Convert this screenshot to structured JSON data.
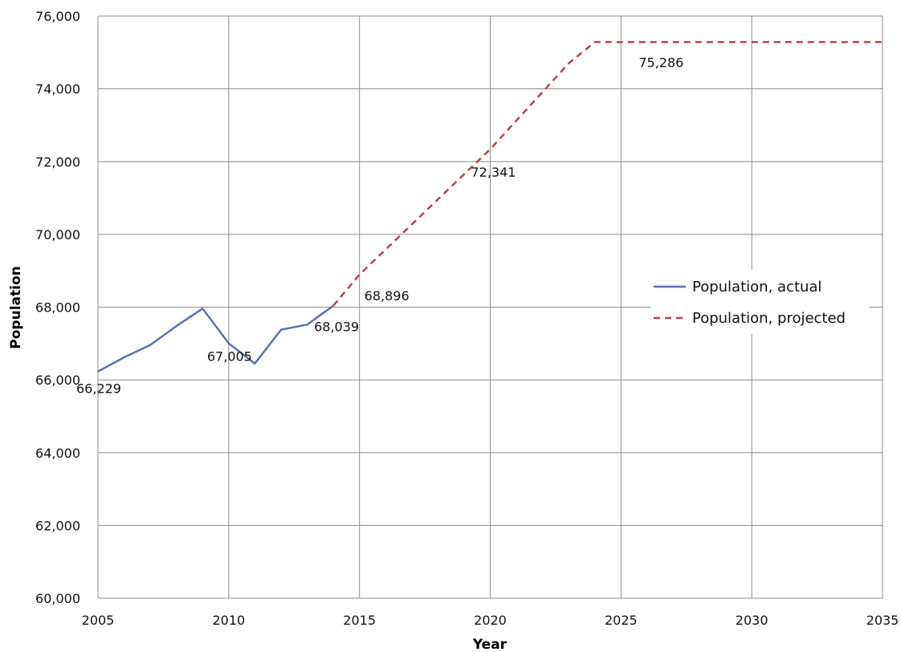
{
  "chart_data": {
    "type": "line",
    "title": "",
    "xlabel": "Year",
    "ylabel": "Population",
    "xlim": [
      2005,
      2035
    ],
    "ylim": [
      60000,
      76000
    ],
    "x_ticks": [
      2005,
      2010,
      2015,
      2020,
      2025,
      2030,
      2035
    ],
    "y_ticks": [
      60000,
      62000,
      64000,
      66000,
      68000,
      70000,
      72000,
      74000,
      76000
    ],
    "grid": true,
    "legend_position": "right",
    "series": [
      {
        "name": "Population, actual",
        "color": "#5b73a6",
        "style": "solid",
        "points": [
          [
            2005,
            66229
          ],
          [
            2006,
            66620
          ],
          [
            2007,
            66960
          ],
          [
            2008,
            67480
          ],
          [
            2009,
            67960
          ],
          [
            2010,
            67005
          ],
          [
            2011,
            66450
          ],
          [
            2012,
            67380
          ],
          [
            2013,
            67520
          ],
          [
            2014,
            68039
          ]
        ]
      },
      {
        "name": "Population, projected",
        "color": "#b5434c",
        "style": "dashed",
        "points": [
          [
            2014,
            68039
          ],
          [
            2015,
            68896
          ],
          [
            2020,
            72341
          ],
          [
            2023,
            74700
          ],
          [
            2024,
            75286
          ],
          [
            2035,
            75286
          ]
        ]
      }
    ],
    "data_labels": [
      {
        "x": 2005,
        "y": 66229,
        "text": "66,229"
      },
      {
        "x": 2010,
        "y": 67005,
        "text": "67,005"
      },
      {
        "x": 2014,
        "y": 68039,
        "text": "68,039"
      },
      {
        "x": 2015,
        "y": 68896,
        "text": "68,896"
      },
      {
        "x": 2020,
        "y": 72341,
        "text": "72,341"
      },
      {
        "x": 2025,
        "y": 75286,
        "text": "75,286"
      }
    ]
  }
}
